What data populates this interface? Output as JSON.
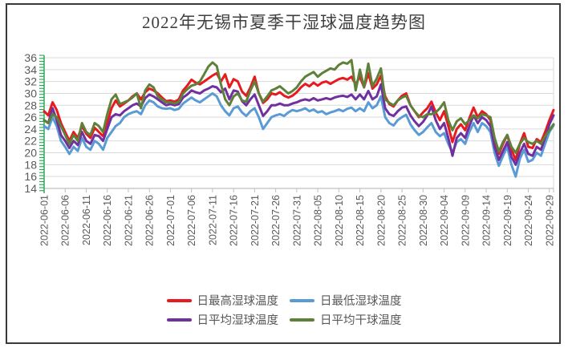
{
  "chart_data": {
    "type": "line",
    "title": "2022年无锡市夏季干湿球温度趋势图",
    "xlabel": "",
    "ylabel": "",
    "ylim": [
      14,
      36
    ],
    "y_ticks": [
      36,
      34,
      32,
      30,
      28,
      26,
      24,
      22,
      20,
      18,
      16,
      14
    ],
    "grid": "horizontal",
    "legend_position": "bottom",
    "x_start_date": "2022-06-01",
    "x_days_total": 121,
    "x_tick_day_step": 5,
    "x_tick_labels": [
      "2022-06-01",
      "2022-06-06",
      "2022-06-11",
      "2022-06-16",
      "2022-06-21",
      "2022-06-26",
      "2022-07-01",
      "2022-07-06",
      "2022-07-11",
      "2022-07-16",
      "2022-07-21",
      "2022-07-26",
      "2022-07-31",
      "2022-08-05",
      "2022-08-10",
      "2022-08-15",
      "2022-08-20",
      "2022-08-25",
      "2022-08-30",
      "2022-09-04",
      "2022-09-09",
      "2022-09-14",
      "2022-09-19",
      "2022-09-24",
      "2022-09-29"
    ],
    "colors": {
      "grid": "#d9d9d9",
      "axis_line": "#bfbfbf",
      "axis_text": "#595959",
      "y_axis_ruler": "#1ea550",
      "title_text": "#3f3f3f"
    },
    "series": [
      {
        "name": "日最高湿球温度",
        "color": "#e8191f",
        "values": [
          27.0,
          26.3,
          28.5,
          27.2,
          25.0,
          23.5,
          22.0,
          23.5,
          22.5,
          24.5,
          23.2,
          22.5,
          24.2,
          23.5,
          22.8,
          25.0,
          27.5,
          28.8,
          27.8,
          28.3,
          28.8,
          29.5,
          30.0,
          29.0,
          30.2,
          30.8,
          30.5,
          30.0,
          29.3,
          28.7,
          28.8,
          28.6,
          29.0,
          30.5,
          31.3,
          32.3,
          31.8,
          31.5,
          32.0,
          32.5,
          33.0,
          33.4,
          32.0,
          33.2,
          31.0,
          32.4,
          32.0,
          30.3,
          29.6,
          31.0,
          32.8,
          30.0,
          28.4,
          29.0,
          30.0,
          29.8,
          30.2,
          29.6,
          29.3,
          29.6,
          30.2,
          31.0,
          31.6,
          31.2,
          31.8,
          31.3,
          31.8,
          32.0,
          31.6,
          32.0,
          32.4,
          32.6,
          32.3,
          32.8,
          31.5,
          32.8,
          31.0,
          33.4,
          30.8,
          31.5,
          33.0,
          29.5,
          28.2,
          27.8,
          28.8,
          29.6,
          30.0,
          28.0,
          27.0,
          26.0,
          26.8,
          27.5,
          28.6,
          26.8,
          25.5,
          27.0,
          24.5,
          21.8,
          24.0,
          24.8,
          23.8,
          25.8,
          27.6,
          26.0,
          27.0,
          26.5,
          25.5,
          22.0,
          19.8,
          21.5,
          23.0,
          20.5,
          18.8,
          21.5,
          23.3,
          21.0,
          20.8,
          22.3,
          21.8,
          23.5,
          25.5,
          27.2
        ]
      },
      {
        "name": "日最低湿球温度",
        "color": "#5b9bd5",
        "values": [
          24.5,
          24.0,
          26.0,
          24.5,
          22.0,
          21.0,
          19.8,
          21.0,
          20.3,
          22.5,
          21.0,
          20.5,
          22.0,
          21.5,
          20.5,
          22.5,
          23.5,
          24.5,
          25.0,
          26.0,
          26.5,
          26.8,
          27.0,
          26.5,
          28.0,
          28.8,
          28.5,
          27.8,
          27.5,
          27.4,
          27.5,
          27.2,
          27.4,
          28.3,
          28.8,
          29.3,
          28.8,
          28.5,
          29.0,
          29.5,
          30.0,
          29.5,
          28.0,
          27.0,
          26.3,
          27.5,
          27.8,
          26.8,
          26.2,
          27.0,
          27.5,
          26.0,
          24.0,
          25.0,
          26.0,
          26.3,
          26.5,
          26.2,
          26.8,
          27.2,
          27.0,
          27.2,
          27.5,
          27.0,
          27.3,
          26.8,
          27.0,
          26.5,
          26.8,
          27.0,
          27.3,
          27.0,
          27.4,
          27.6,
          27.0,
          27.5,
          27.0,
          28.5,
          27.5,
          28.0,
          29.5,
          26.0,
          25.0,
          24.6,
          25.5,
          26.0,
          26.4,
          24.8,
          23.8,
          23.0,
          23.5,
          24.3,
          25.0,
          23.5,
          22.8,
          23.3,
          21.5,
          20.0,
          21.8,
          22.3,
          21.5,
          23.5,
          25.0,
          23.5,
          25.0,
          24.5,
          23.5,
          20.0,
          17.8,
          19.5,
          21.0,
          18.0,
          16.0,
          19.0,
          20.5,
          18.5,
          18.8,
          20.0,
          19.5,
          21.5,
          23.5,
          24.6
        ]
      },
      {
        "name": "日平均湿球温度",
        "color": "#7030a0",
        "values": [
          25.5,
          25.0,
          27.5,
          25.5,
          23.0,
          22.0,
          20.8,
          22.0,
          21.3,
          23.5,
          22.0,
          21.5,
          23.0,
          22.8,
          22.0,
          24.0,
          26.0,
          26.5,
          26.3,
          27.0,
          27.5,
          28.0,
          28.3,
          27.8,
          29.2,
          29.8,
          29.5,
          29.0,
          28.5,
          28.0,
          28.2,
          28.0,
          28.2,
          29.3,
          29.8,
          30.5,
          30.2,
          30.0,
          30.5,
          30.8,
          31.2,
          31.0,
          30.2,
          30.8,
          29.0,
          30.5,
          30.3,
          28.7,
          28.0,
          29.0,
          29.8,
          28.0,
          26.2,
          27.0,
          28.0,
          28.0,
          28.3,
          28.0,
          28.0,
          28.3,
          28.5,
          28.8,
          29.0,
          28.8,
          29.2,
          28.8,
          29.0,
          29.2,
          29.0,
          29.3,
          29.5,
          29.6,
          29.4,
          29.8,
          29.0,
          29.8,
          29.0,
          30.4,
          29.0,
          29.5,
          31.5,
          27.5,
          26.5,
          26.2,
          27.0,
          27.6,
          27.8,
          26.3,
          25.3,
          24.5,
          25.2,
          26.3,
          27.8,
          25.5,
          24.0,
          25.0,
          22.5,
          19.5,
          22.5,
          23.3,
          22.5,
          24.5,
          26.3,
          25.0,
          26.0,
          25.5,
          24.5,
          21.0,
          18.8,
          20.3,
          21.8,
          19.3,
          18.0,
          20.0,
          21.5,
          19.8,
          19.5,
          21.0,
          20.5,
          22.5,
          24.8,
          26.3
        ]
      },
      {
        "name": "日平均干球温度",
        "color": "#5f8038",
        "values": [
          25.5,
          25.0,
          26.5,
          26.0,
          24.5,
          23.0,
          21.5,
          23.0,
          22.0,
          25.0,
          23.5,
          23.0,
          25.0,
          24.5,
          23.5,
          26.5,
          29.0,
          29.8,
          28.2,
          28.5,
          28.8,
          29.3,
          30.0,
          27.5,
          30.5,
          31.5,
          31.0,
          29.5,
          29.0,
          28.5,
          28.5,
          28.3,
          28.6,
          30.0,
          30.7,
          31.3,
          31.5,
          32.0,
          33.2,
          34.5,
          35.2,
          34.6,
          31.5,
          29.0,
          28.0,
          29.5,
          30.0,
          28.8,
          28.6,
          30.5,
          32.0,
          30.0,
          28.6,
          29.5,
          30.5,
          30.8,
          31.2,
          30.6,
          30.0,
          30.4,
          31.0,
          32.0,
          32.8,
          33.2,
          33.6,
          32.8,
          33.4,
          33.8,
          34.2,
          34.0,
          34.8,
          35.2,
          35.0,
          35.6,
          30.5,
          34.0,
          31.0,
          35.0,
          31.2,
          32.5,
          34.2,
          29.0,
          28.4,
          28.0,
          28.8,
          29.3,
          29.6,
          28.0,
          27.0,
          26.2,
          26.0,
          26.5,
          26.5,
          26.8,
          27.5,
          28.5,
          25.5,
          23.8,
          25.3,
          25.8,
          24.8,
          25.5,
          26.3,
          25.8,
          26.5,
          26.3,
          26.0,
          22.5,
          20.2,
          21.8,
          23.0,
          21.0,
          20.0,
          21.5,
          22.5,
          21.8,
          21.5,
          22.0,
          21.5,
          22.8,
          23.8,
          24.8
        ]
      }
    ]
  }
}
